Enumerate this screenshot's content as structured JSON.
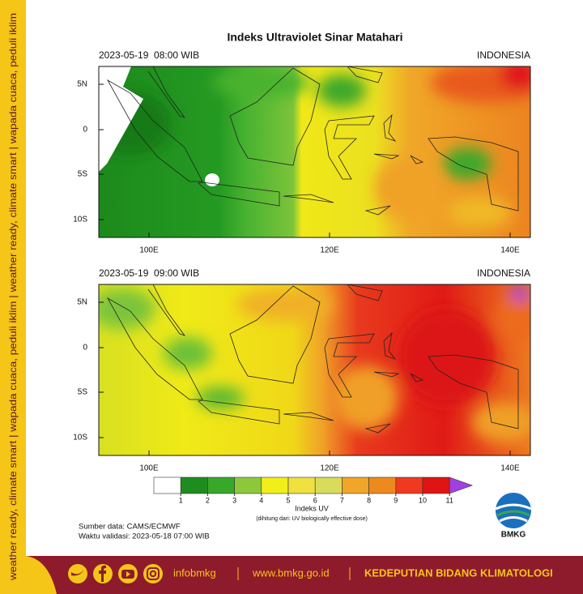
{
  "side_text": "weather ready, climate smart | wapada cuaca, peduli iklim | weather ready, climate smart | wapada cuaca, peduli iklim",
  "title": "Indeks Ultraviolet Sinar Matahari",
  "panels": [
    {
      "datetime": "2023-05-19  08:00 WIB",
      "region": "INDONESIA"
    },
    {
      "datetime": "2023-05-19  09:00 WIB",
      "region": "INDONESIA"
    }
  ],
  "lat_labels": [
    "5N",
    "0",
    "5S",
    "10S"
  ],
  "lon_labels": [
    "100E",
    "120E",
    "140E"
  ],
  "colorbar": {
    "colors": [
      "#ffffff",
      "#1e8c1e",
      "#37a82a",
      "#8cc83a",
      "#f2ee1a",
      "#f0e040",
      "#d8dc5a",
      "#f0a628",
      "#ec8a1e",
      "#ee3a1e",
      "#e01414"
    ],
    "extend_color": "#a040e0",
    "ticks": [
      1,
      2,
      3,
      4,
      5,
      6,
      7,
      8,
      9,
      10,
      11
    ],
    "title": "Indeks UV",
    "subtitle": "(dihitung dari: UV biologically effective dose)"
  },
  "source": "Sumber data: CAMS/ECMWF",
  "validity": "Waktu validasi: 2023-05-18 07:00 WIB",
  "logo": "BMKG",
  "footer": {
    "handle": "infobmkg",
    "website": "www.bmkg.go.id",
    "department": "KEDEPUTIAN BIDANG KLIMATOLOGI"
  }
}
